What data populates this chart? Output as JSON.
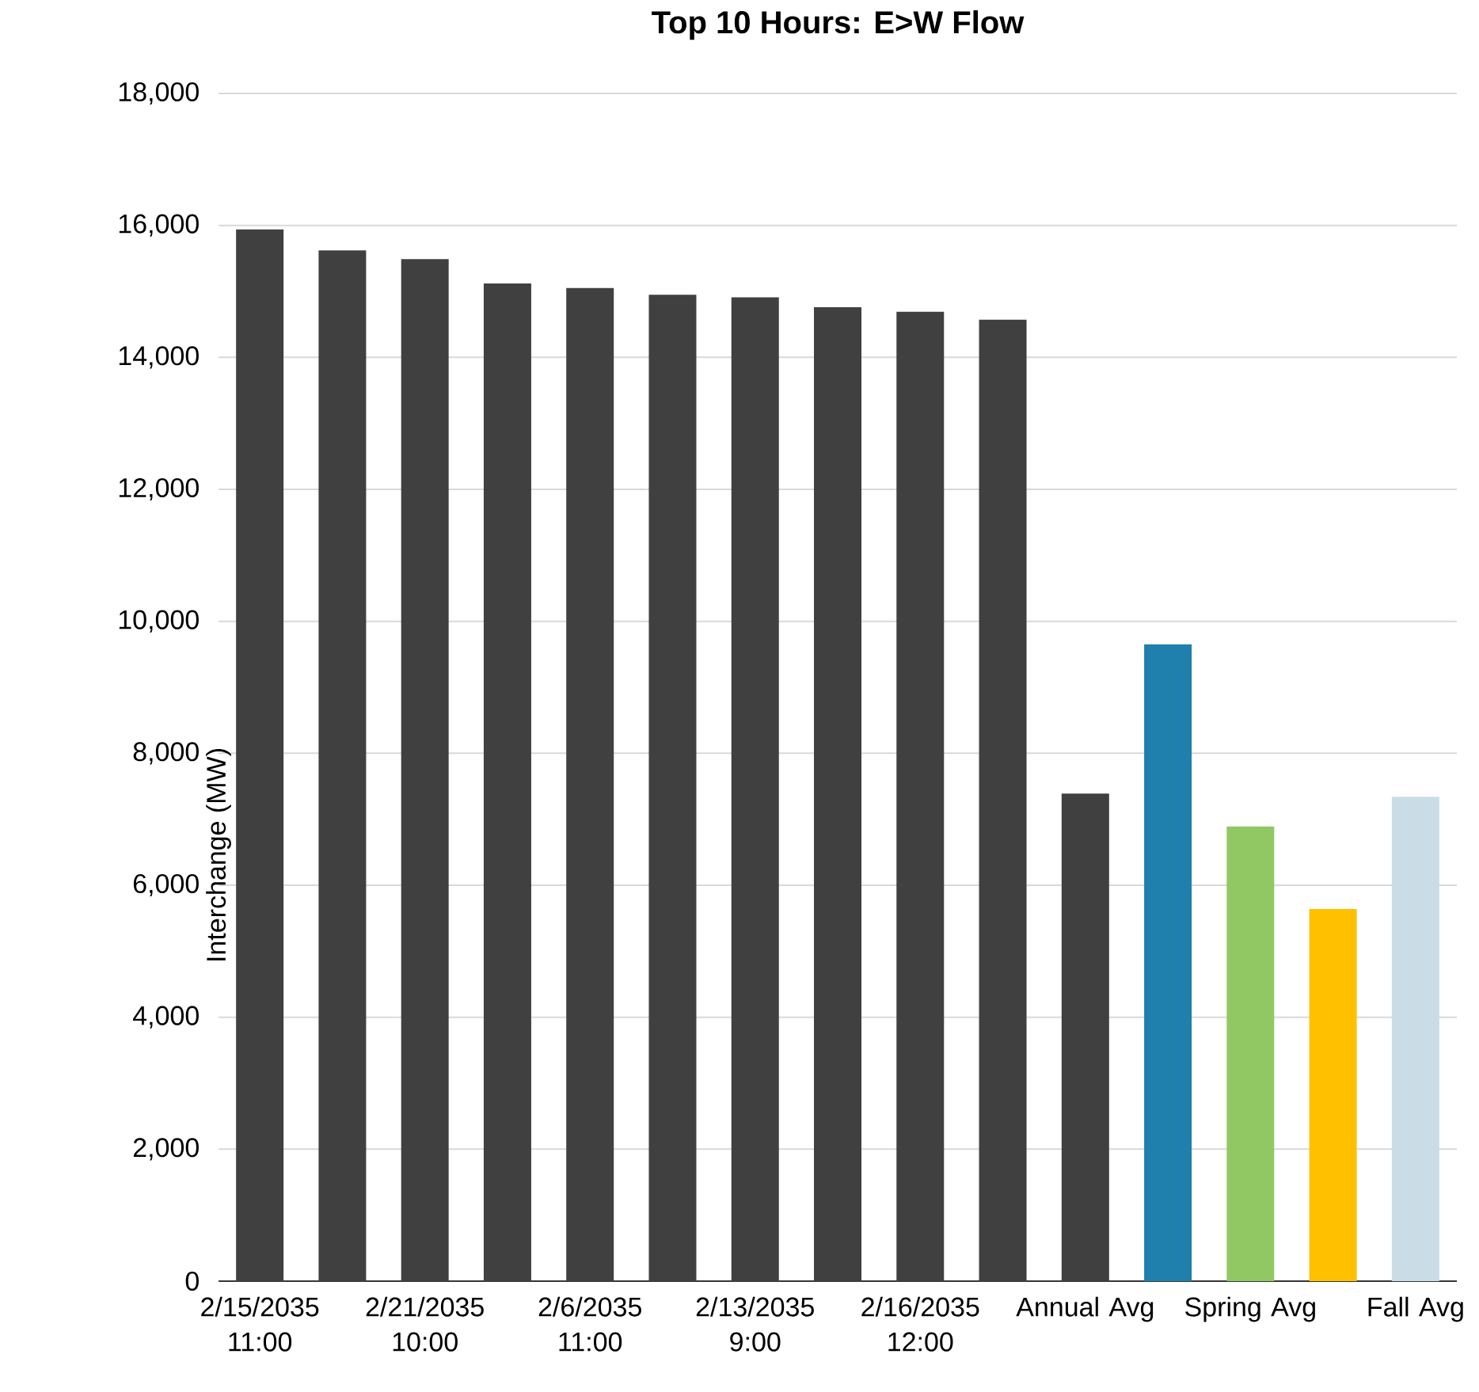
{
  "chart_data": {
    "type": "bar",
    "title": "Top 10 Hours: E>W Flow",
    "ylabel": "Interchange (MW)",
    "categories": [
      "2/15/2035 11:00",
      null,
      "2/21/2035 10:00",
      null,
      "2/6/2035 11:00",
      null,
      "2/13/2035 9:00",
      null,
      "2/16/2035 12:00",
      null,
      "Annual Avg",
      null,
      "Spring Avg",
      null,
      "Fall Avg"
    ],
    "values": [
      15940,
      15620,
      15490,
      15120,
      15050,
      14950,
      14910,
      14760,
      14690,
      14570,
      7390,
      9650,
      6890,
      5640,
      7340
    ],
    "colors": [
      "#404040",
      "#404040",
      "#404040",
      "#404040",
      "#404040",
      "#404040",
      "#404040",
      "#404040",
      "#404040",
      "#404040",
      "#404040",
      "#1f7fad",
      "#92c864",
      "#ffc000",
      "#cadde6"
    ],
    "ylim": [
      0,
      18000
    ],
    "yticks": [
      {
        "value": 0,
        "label": "0"
      },
      {
        "value": 2000,
        "label": "2,000"
      },
      {
        "value": 4000,
        "label": "4,000"
      },
      {
        "value": 6000,
        "label": "6,000"
      },
      {
        "value": 8000,
        "label": "8,000"
      },
      {
        "value": 10000,
        "label": "10,000"
      },
      {
        "value": 12000,
        "label": "12,000"
      },
      {
        "value": 14000,
        "label": "14,000"
      },
      {
        "value": 16000,
        "label": "16,000"
      },
      {
        "value": 18000,
        "label": "18,000"
      }
    ],
    "grid": "y"
  }
}
